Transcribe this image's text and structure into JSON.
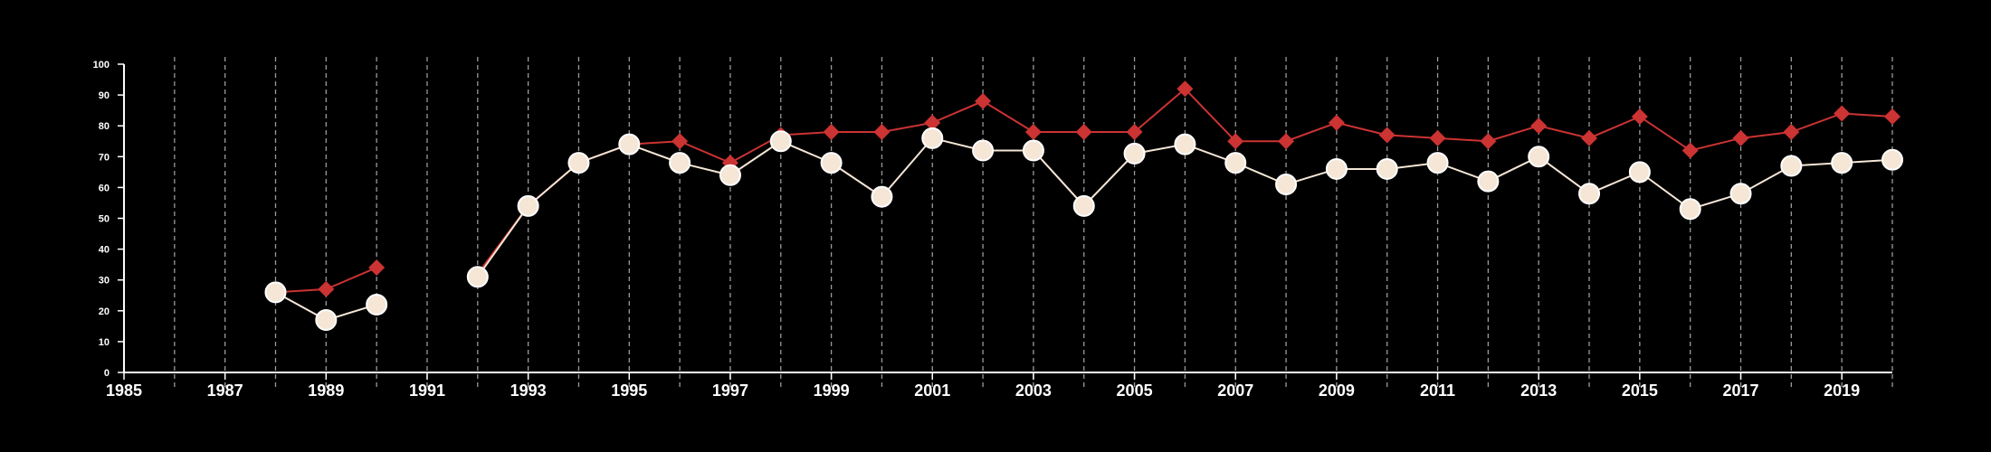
{
  "chart_data": {
    "type": "line",
    "title": "",
    "xlabel": "",
    "ylabel": "",
    "xlim": [
      1985,
      2020
    ],
    "ylim": [
      0,
      100
    ],
    "x_ticks": [
      1985,
      1987,
      1989,
      1991,
      1993,
      1995,
      1997,
      1999,
      2001,
      2003,
      2005,
      2007,
      2009,
      2011,
      2013,
      2015,
      2017,
      2019
    ],
    "y_ticks": [
      0,
      10,
      20,
      30,
      40,
      50,
      60,
      70,
      80,
      90,
      100
    ],
    "grid": {
      "vertical": true,
      "horizontal": false,
      "style": "dashed"
    },
    "background": "#000000",
    "series": [
      {
        "marker": "diamond",
        "color": "#cc3333",
        "x": [
          1988,
          1989,
          1990,
          1991,
          1992,
          1993,
          1994,
          1995,
          1996,
          1997,
          1998,
          1999,
          2000,
          2001,
          2002,
          2003,
          2004,
          2005,
          2006,
          2007,
          2008,
          2009,
          2010,
          2011,
          2012,
          2013,
          2014,
          2015,
          2016,
          2017,
          2018,
          2019,
          2020
        ],
        "y": [
          26,
          27,
          34,
          null,
          32,
          54,
          68,
          74,
          75,
          68,
          77,
          78,
          78,
          81,
          88,
          78,
          78,
          78,
          92,
          75,
          75,
          81,
          77,
          76,
          75,
          80,
          76,
          83,
          72,
          76,
          78,
          84,
          83
        ]
      },
      {
        "marker": "circle",
        "color": "#f5e6d6",
        "x": [
          1988,
          1989,
          1990,
          1991,
          1992,
          1993,
          1994,
          1995,
          1996,
          1997,
          1998,
          1999,
          2000,
          2001,
          2002,
          2003,
          2004,
          2005,
          2006,
          2007,
          2008,
          2009,
          2010,
          2011,
          2012,
          2013,
          2014,
          2015,
          2016,
          2017,
          2018,
          2019,
          2020
        ],
        "y": [
          26,
          17,
          22,
          null,
          31,
          54,
          68,
          74,
          68,
          64,
          75,
          68,
          57,
          76,
          72,
          72,
          54,
          71,
          74,
          68,
          61,
          66,
          66,
          68,
          62,
          70,
          58,
          65,
          53,
          58,
          67,
          68,
          69
        ]
      }
    ]
  }
}
